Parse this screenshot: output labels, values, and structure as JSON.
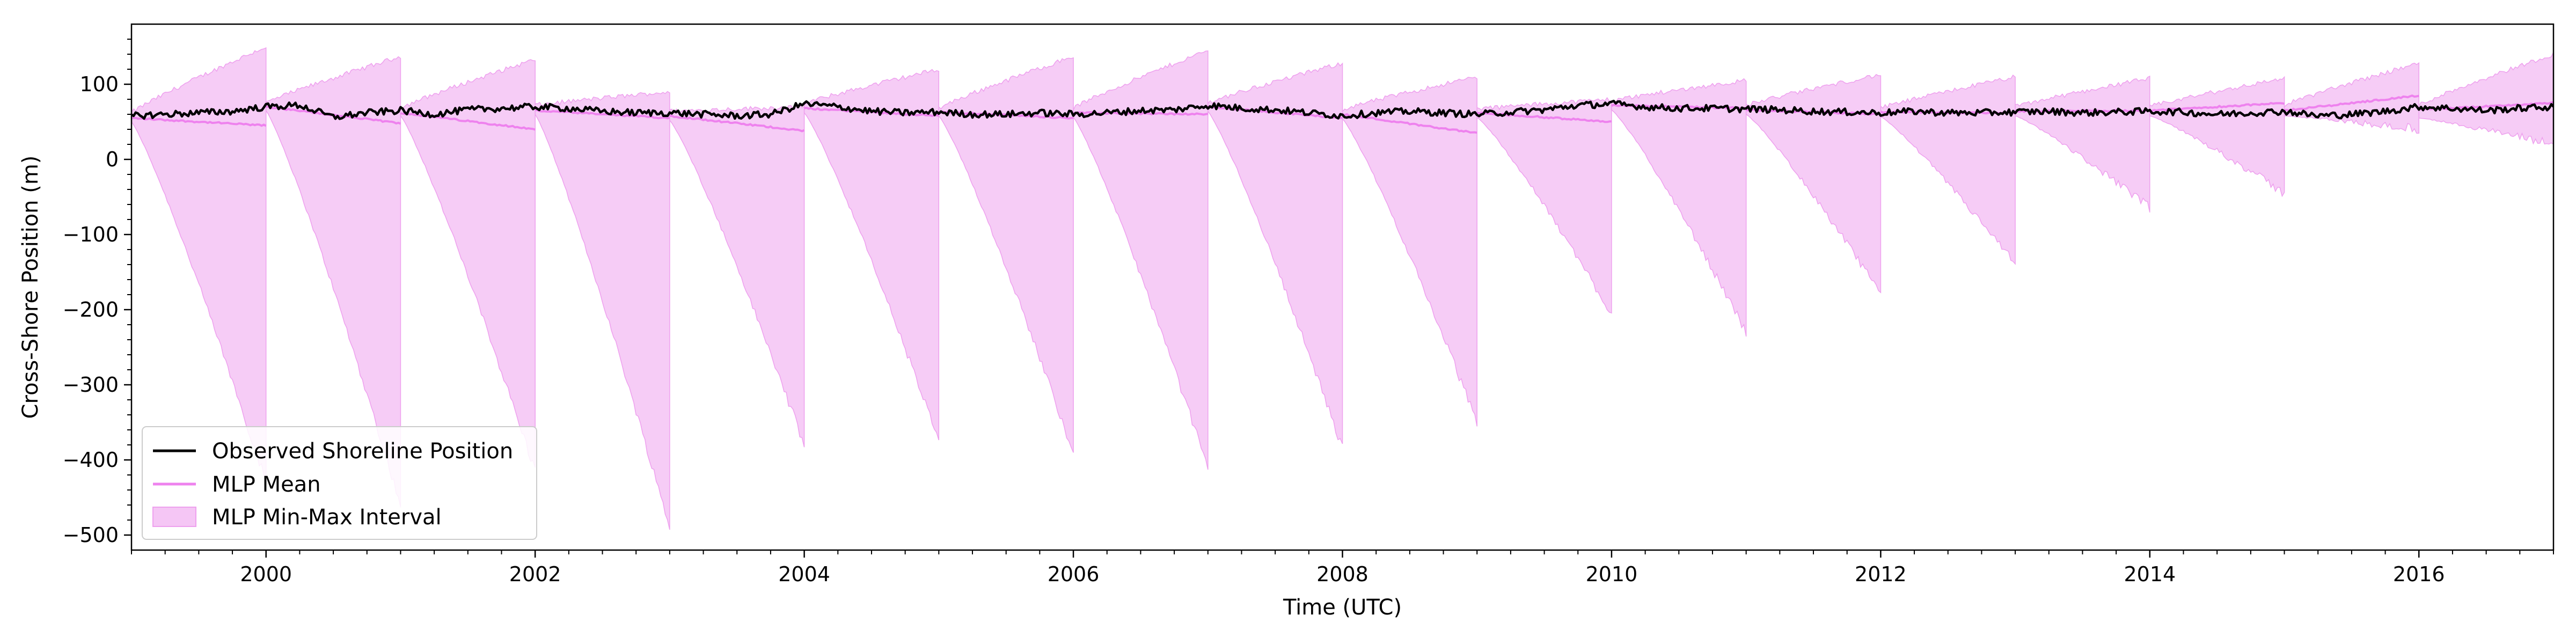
{
  "chart_data": {
    "type": "line",
    "xlabel": "Time (UTC)",
    "ylabel": "Cross-Shore Position (m)",
    "xlim": [
      1999.0,
      2017.0
    ],
    "ylim": [
      -520,
      180
    ],
    "x_ticks": [
      2000,
      2002,
      2004,
      2006,
      2008,
      2010,
      2012,
      2014,
      2016
    ],
    "x_tick_labels": [
      "2000",
      "2002",
      "2004",
      "2006",
      "2008",
      "2010",
      "2012",
      "2014",
      "2016"
    ],
    "y_ticks": [
      100,
      0,
      -100,
      -200,
      -300,
      -400,
      -500
    ],
    "y_tick_labels": [
      "100",
      "0",
      "−100",
      "−200",
      "−300",
      "−400",
      "−500"
    ],
    "grid": false,
    "legend_position": "bottom-left",
    "colors": {
      "observed": "#000000",
      "mlp_mean": "#ee82ee",
      "interval_fill": "#f5c6f5",
      "interval_edge": "#eea0ee"
    },
    "series": [
      {
        "name": "Observed Shoreline Position",
        "kind": "line"
      },
      {
        "name": "MLP Mean",
        "kind": "line"
      },
      {
        "name": "MLP Min-Max Interval",
        "kind": "band"
      }
    ],
    "observed_points": [
      [
        1999.0,
        58
      ],
      [
        1999.25,
        60
      ],
      [
        1999.5,
        62
      ],
      [
        1999.75,
        64
      ],
      [
        2000.0,
        70
      ],
      [
        2000.25,
        72
      ],
      [
        2000.5,
        56
      ],
      [
        2000.75,
        62
      ],
      [
        2001.0,
        65
      ],
      [
        2001.25,
        60
      ],
      [
        2001.5,
        66
      ],
      [
        2001.75,
        68
      ],
      [
        2002.0,
        70
      ],
      [
        2002.25,
        68
      ],
      [
        2002.5,
        64
      ],
      [
        2002.75,
        62
      ],
      [
        2003.0,
        62
      ],
      [
        2003.25,
        60
      ],
      [
        2003.5,
        58
      ],
      [
        2003.75,
        60
      ],
      [
        2004.0,
        74
      ],
      [
        2004.25,
        70
      ],
      [
        2004.5,
        64
      ],
      [
        2004.75,
        62
      ],
      [
        2005.0,
        63
      ],
      [
        2005.25,
        60
      ],
      [
        2005.5,
        60
      ],
      [
        2005.75,
        62
      ],
      [
        2006.0,
        60
      ],
      [
        2006.25,
        62
      ],
      [
        2006.5,
        65
      ],
      [
        2006.75,
        66
      ],
      [
        2007.0,
        72
      ],
      [
        2007.25,
        68
      ],
      [
        2007.5,
        66
      ],
      [
        2007.75,
        62
      ],
      [
        2008.0,
        58
      ],
      [
        2008.25,
        62
      ],
      [
        2008.5,
        64
      ],
      [
        2008.75,
        62
      ],
      [
        2009.0,
        60
      ],
      [
        2009.25,
        63
      ],
      [
        2009.5,
        66
      ],
      [
        2009.75,
        72
      ],
      [
        2010.0,
        74
      ],
      [
        2010.25,
        70
      ],
      [
        2010.5,
        68
      ],
      [
        2010.75,
        68
      ],
      [
        2011.0,
        67
      ],
      [
        2011.25,
        66
      ],
      [
        2011.5,
        64
      ],
      [
        2011.75,
        63
      ],
      [
        2012.0,
        62
      ],
      [
        2012.25,
        64
      ],
      [
        2012.5,
        62
      ],
      [
        2012.75,
        62
      ],
      [
        2013.0,
        63
      ],
      [
        2013.25,
        64
      ],
      [
        2013.5,
        62
      ],
      [
        2013.75,
        63
      ],
      [
        2014.0,
        64
      ],
      [
        2014.25,
        63
      ],
      [
        2014.5,
        60
      ],
      [
        2014.75,
        62
      ],
      [
        2015.0,
        64
      ],
      [
        2015.25,
        58
      ],
      [
        2015.5,
        60
      ],
      [
        2015.75,
        64
      ],
      [
        2016.0,
        70
      ],
      [
        2016.25,
        68
      ],
      [
        2016.5,
        65
      ],
      [
        2016.75,
        68
      ],
      [
        2017.0,
        70
      ]
    ],
    "segments": [
      {
        "start": 1999.0,
        "end": 2000.0,
        "mean_start": 55,
        "mean_end": 45,
        "upper_start": 62,
        "upper_end": 150,
        "lower_start": 50,
        "lower_end": -430
      },
      {
        "start": 2000.0,
        "end": 2001.0,
        "mean_start": 70,
        "mean_end": 48,
        "upper_start": 75,
        "upper_end": 137,
        "lower_start": 65,
        "lower_end": -460
      },
      {
        "start": 2001.0,
        "end": 2002.0,
        "mean_start": 62,
        "mean_end": 40,
        "upper_start": 68,
        "upper_end": 133,
        "lower_start": 58,
        "lower_end": -415
      },
      {
        "start": 2002.0,
        "end": 2003.0,
        "mean_start": 65,
        "mean_end": 55,
        "upper_start": 72,
        "upper_end": 90,
        "lower_start": 60,
        "lower_end": -490
      },
      {
        "start": 2003.0,
        "end": 2004.0,
        "mean_start": 58,
        "mean_end": 38,
        "upper_start": 64,
        "upper_end": 70,
        "lower_start": 52,
        "lower_end": -380
      },
      {
        "start": 2004.0,
        "end": 2005.0,
        "mean_start": 68,
        "mean_end": 58,
        "upper_start": 74,
        "upper_end": 120,
        "lower_start": 62,
        "lower_end": -375
      },
      {
        "start": 2005.0,
        "end": 2006.0,
        "mean_start": 63,
        "mean_end": 55,
        "upper_start": 68,
        "upper_end": 137,
        "lower_start": 58,
        "lower_end": -390
      },
      {
        "start": 2006.0,
        "end": 2007.0,
        "mean_start": 62,
        "mean_end": 60,
        "upper_start": 68,
        "upper_end": 145,
        "lower_start": 56,
        "lower_end": -410
      },
      {
        "start": 2007.0,
        "end": 2008.0,
        "mean_start": 70,
        "mean_end": 55,
        "upper_start": 75,
        "upper_end": 128,
        "lower_start": 64,
        "lower_end": -385
      },
      {
        "start": 2008.0,
        "end": 2009.0,
        "mean_start": 60,
        "mean_end": 35,
        "upper_start": 66,
        "upper_end": 110,
        "lower_start": 54,
        "lower_end": -350
      },
      {
        "start": 2009.0,
        "end": 2010.0,
        "mean_start": 62,
        "mean_end": 50,
        "upper_start": 67,
        "upper_end": 80,
        "lower_start": 56,
        "lower_end": -205
      },
      {
        "start": 2010.0,
        "end": 2011.0,
        "mean_start": 72,
        "mean_end": 68,
        "upper_start": 78,
        "upper_end": 105,
        "lower_start": 66,
        "lower_end": -230
      },
      {
        "start": 2011.0,
        "end": 2012.0,
        "mean_start": 66,
        "mean_end": 60,
        "upper_start": 72,
        "upper_end": 113,
        "lower_start": 60,
        "lower_end": -180
      },
      {
        "start": 2012.0,
        "end": 2013.0,
        "mean_start": 63,
        "mean_end": 62,
        "upper_start": 68,
        "upper_end": 110,
        "lower_start": 57,
        "lower_end": -140
      },
      {
        "start": 2013.0,
        "end": 2014.0,
        "mean_start": 64,
        "mean_end": 65,
        "upper_start": 70,
        "upper_end": 108,
        "lower_start": 58,
        "lower_end": -65
      },
      {
        "start": 2014.0,
        "end": 2015.0,
        "mean_start": 65,
        "mean_end": 75,
        "upper_start": 70,
        "upper_end": 108,
        "lower_start": 58,
        "lower_end": -45
      },
      {
        "start": 2015.0,
        "end": 2016.0,
        "mean_start": 65,
        "mean_end": 85,
        "upper_start": 72,
        "upper_end": 128,
        "lower_start": 58,
        "lower_end": 40
      },
      {
        "start": 2016.0,
        "end": 2017.0,
        "mean_start": 66,
        "mean_end": 75,
        "upper_start": 72,
        "upper_end": 140,
        "lower_start": 55,
        "lower_end": 20
      }
    ]
  }
}
